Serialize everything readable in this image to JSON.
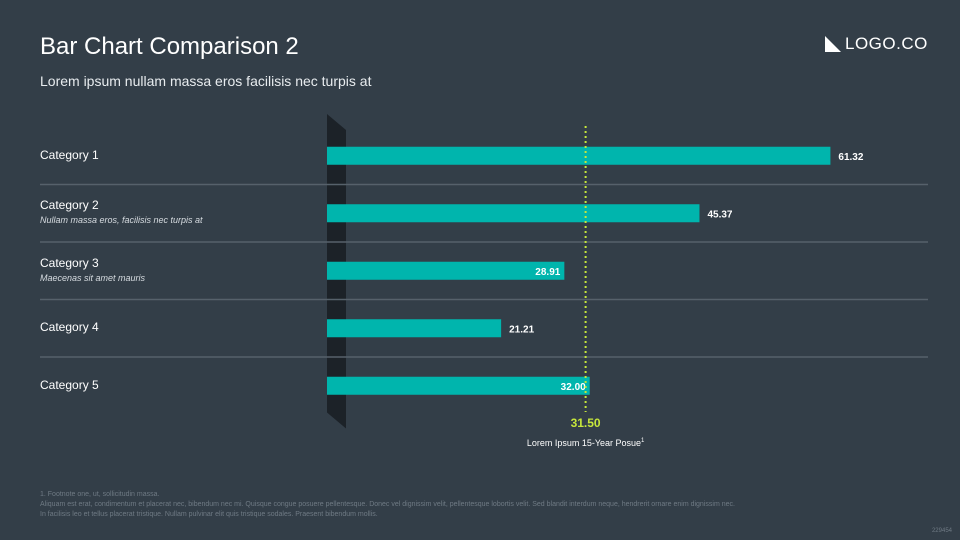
{
  "header": {
    "title": "Bar Chart Comparison 2",
    "subtitle": "Lorem ipsum nullam massa eros facilisis nec turpis at",
    "logo_text": "LOGO.CO"
  },
  "colors": {
    "background": "#333e48",
    "bar": "#00b5ad",
    "reference_line": "#c6e63c",
    "divider": "#56616b",
    "axis_band": "#1c2228"
  },
  "chart_data": {
    "type": "bar",
    "orientation": "horizontal",
    "categories": [
      "Category 1",
      "Category 2",
      "Category 3",
      "Category 4",
      "Category 5"
    ],
    "descriptions": [
      "",
      "Nullam massa eros, facilisis nec turpis at",
      "Maecenas sit amet mauris",
      "",
      ""
    ],
    "values": [
      61.32,
      45.37,
      28.91,
      21.21,
      32.0
    ],
    "value_labels": [
      "61.32",
      "45.37",
      "28.91",
      "21.21",
      "32.00"
    ],
    "xlim": [
      0,
      62
    ],
    "grid": false,
    "reference_line": {
      "value": 31.5,
      "value_label": "31.50",
      "label": "Lorem Ipsum 15-Year Posue",
      "footnote_marker": "1"
    }
  },
  "footnote": {
    "line1": "1. Footnote one, ut, sollicitudin massa.",
    "line2": "Aliquam est erat, condimentum et placerat nec, bibendum nec mi. Quisque congue posuere pellentesque. Donec vel dignissim velit, pellentesque lobortis velit. Sed blandit interdum neque, hendrerit ornare enim dignissim nec.",
    "line3": "In facilisis leo et tellus placerat tristique. Nullam pulvinar elit quis tristique sodales. Praesent bibendum mollis."
  },
  "page_number": "229454"
}
